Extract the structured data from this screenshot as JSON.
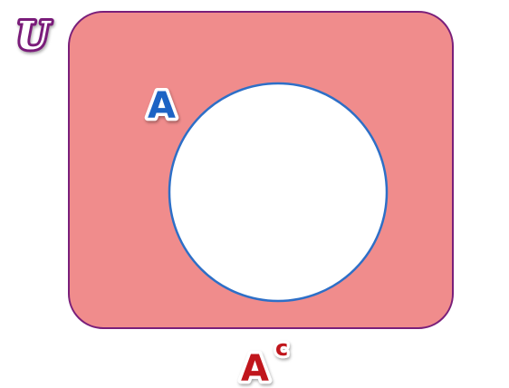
{
  "diagram": {
    "type": "venn-complement",
    "universe_label": "U",
    "set_label": "A",
    "complement_label_base": "A",
    "complement_label_sup": "c",
    "colors": {
      "universe_fill": "#f08c8c",
      "universe_stroke": "#7a1f7a",
      "set_fill": "#ffffff",
      "set_stroke": "#2d6fc7",
      "universe_label_color": "#7a1f7a",
      "set_label_color": "#1a63c4",
      "complement_label_color": "#c0141b"
    }
  }
}
